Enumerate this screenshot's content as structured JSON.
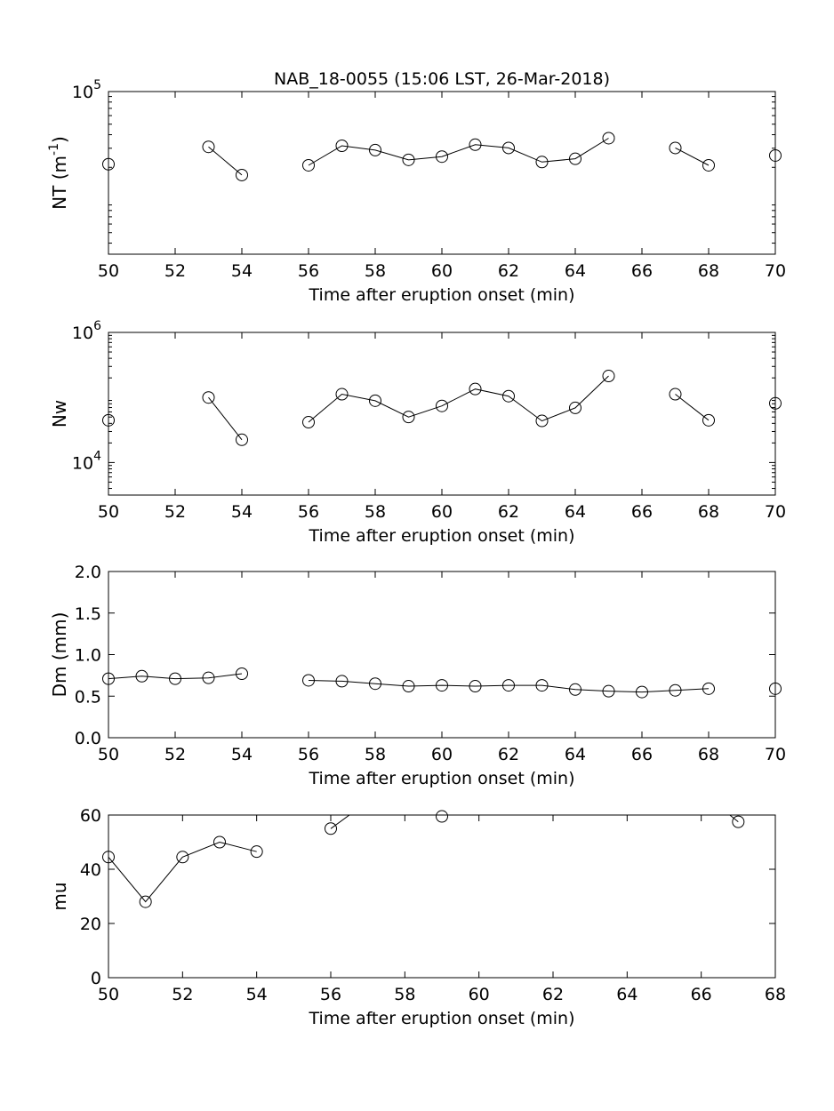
{
  "chart_data": [
    {
      "type": "line",
      "title": "NAB_18-0055 (15:06 LST, 26-Mar-2018)",
      "xlabel": "Time after eruption onset (min)",
      "ylabel": "NT (m",
      "ylabel_sup": "-1",
      "ylabel_suffix": ")",
      "yscale": "log",
      "xlim": [
        50,
        70
      ],
      "ylim_exp": [
        3.5,
        5
      ],
      "xticks": [
        50,
        52,
        54,
        56,
        58,
        60,
        62,
        64,
        66,
        68,
        70
      ],
      "yticks": [
        {
          "base": "10",
          "exp": "5",
          "value_exp": 5
        }
      ],
      "ticks_both_sides": true,
      "segments": [
        [
          [
            50,
            4.33
          ]
        ],
        [
          [
            53,
            4.49
          ],
          [
            54,
            4.23
          ]
        ],
        [
          [
            56,
            4.32
          ],
          [
            57,
            4.5
          ],
          [
            58,
            4.46
          ],
          [
            59,
            4.37
          ],
          [
            60,
            4.4
          ],
          [
            61,
            4.51
          ],
          [
            62,
            4.48
          ],
          [
            63,
            4.35
          ],
          [
            64,
            4.38
          ],
          [
            65,
            4.57
          ]
        ],
        [
          [
            67,
            4.48
          ],
          [
            68,
            4.32
          ]
        ],
        [
          [
            70,
            4.41
          ]
        ]
      ]
    },
    {
      "type": "line",
      "title": "",
      "xlabel": "Time after eruption onset (min)",
      "ylabel": "Nw",
      "yscale": "log",
      "xlim": [
        50,
        70
      ],
      "ylim_exp": [
        3.5,
        6
      ],
      "xticks": [
        50,
        52,
        54,
        56,
        58,
        60,
        62,
        64,
        66,
        68,
        70
      ],
      "yticks": [
        {
          "base": "10",
          "exp": "4",
          "value_exp": 4
        },
        {
          "base": "10",
          "exp": "6",
          "value_exp": 6
        }
      ],
      "ticks_both_sides": true,
      "segments": [
        [
          [
            50,
            4.65
          ]
        ],
        [
          [
            53,
            5.0
          ],
          [
            54,
            4.35
          ]
        ],
        [
          [
            56,
            4.62
          ],
          [
            57,
            5.05
          ],
          [
            58,
            4.95
          ],
          [
            59,
            4.7
          ],
          [
            60,
            4.87
          ],
          [
            61,
            5.13
          ],
          [
            62,
            5.02
          ],
          [
            63,
            4.64
          ],
          [
            64,
            4.84
          ],
          [
            65,
            5.33
          ]
        ],
        [
          [
            67,
            5.05
          ],
          [
            68,
            4.65
          ]
        ],
        [
          [
            70,
            4.91
          ]
        ]
      ]
    },
    {
      "type": "line",
      "title": "",
      "xlabel": "Time after eruption onset (min)",
      "ylabel": "Dm (mm)",
      "yscale": "linear",
      "xlim": [
        50,
        70
      ],
      "ylim": [
        0,
        2
      ],
      "xticks": [
        50,
        52,
        54,
        56,
        58,
        60,
        62,
        64,
        66,
        68,
        70
      ],
      "yticks": [
        0.0,
        0.5,
        1.0,
        1.5,
        2.0
      ],
      "ytick_labels": [
        "0.0",
        "0.5",
        "1.0",
        "1.5",
        "2.0"
      ],
      "ticks_both_sides": false,
      "segments": [
        [
          [
            50,
            0.71
          ],
          [
            51,
            0.74
          ],
          [
            52,
            0.71
          ],
          [
            53,
            0.72
          ],
          [
            54,
            0.77
          ]
        ],
        [
          [
            56,
            0.69
          ],
          [
            57,
            0.68
          ],
          [
            58,
            0.65
          ],
          [
            59,
            0.62
          ],
          [
            60,
            0.63
          ],
          [
            61,
            0.62
          ],
          [
            62,
            0.63
          ],
          [
            63,
            0.63
          ],
          [
            64,
            0.58
          ],
          [
            65,
            0.56
          ],
          [
            66,
            0.55
          ],
          [
            67,
            0.57
          ],
          [
            68,
            0.59
          ]
        ],
        [
          [
            70,
            0.59
          ]
        ]
      ]
    },
    {
      "type": "line",
      "title": "",
      "xlabel": "Time after eruption onset (min)",
      "ylabel": "mu",
      "yscale": "linear",
      "xlim": [
        50,
        68
      ],
      "ylim": [
        0,
        60
      ],
      "xticks": [
        50,
        52,
        54,
        56,
        58,
        60,
        62,
        64,
        66,
        68
      ],
      "yticks": [
        0,
        20,
        40,
        60
      ],
      "ytick_labels": [
        "0",
        "20",
        "40",
        "60"
      ],
      "ticks_both_sides": false,
      "segments": [
        [
          [
            50,
            44.5
          ],
          [
            51,
            28
          ],
          [
            52,
            44.5
          ],
          [
            53,
            50
          ],
          [
            54,
            46.5
          ]
        ],
        [
          [
            56,
            55
          ],
          [
            57,
            65
          ]
        ],
        [
          [
            59,
            59.5
          ]
        ],
        [
          [
            66.5,
            63
          ],
          [
            67,
            57.5
          ]
        ]
      ]
    }
  ]
}
